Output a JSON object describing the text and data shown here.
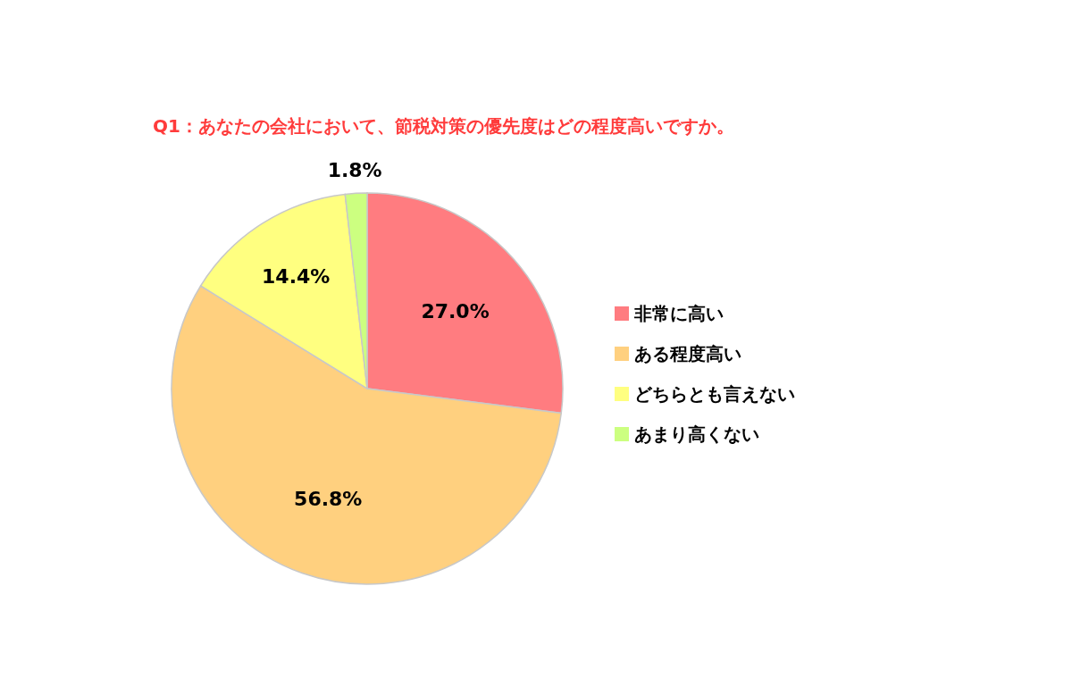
{
  "chart_data": {
    "type": "pie",
    "title": "Q1：あなたの会社において、節税対策の優先度はどの程度高いですか。",
    "categories": [
      "非常に高い",
      "ある程度高い",
      "どちらとも言えない",
      "あまり高くない"
    ],
    "values": [
      27.0,
      56.8,
      14.4,
      1.8
    ],
    "colors": [
      "#ff7c80",
      "#ffd07f",
      "#ffff80",
      "#ccff80"
    ],
    "value_labels": [
      "27.0%",
      "56.8%",
      "14.4%",
      "1.8%"
    ],
    "legend": "right"
  }
}
